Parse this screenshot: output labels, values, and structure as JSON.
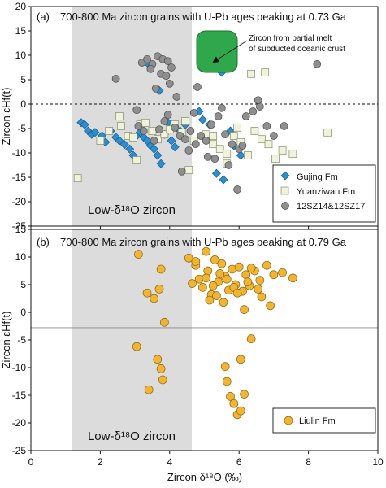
{
  "chart_data": [
    {
      "type": "scatter",
      "panel_label": "(a)",
      "title": "700-800 Ma zircon grains with U-Pb ages peaking at 0.73 Ga",
      "ylabel": "Zircon εHf(t)",
      "xlim": [
        0,
        10
      ],
      "ylim": [
        -25,
        20
      ],
      "xticks": [
        "0",
        "2",
        "4",
        "6",
        "8",
        "10"
      ],
      "yticks": [
        "-25",
        "-20",
        "-15",
        "-10",
        "-5",
        "0",
        "5",
        "10",
        "15",
        "20"
      ],
      "shaded_band": {
        "x_from": 1.15,
        "x_to": 4.6,
        "label": "Low-δ¹⁸O zircon"
      },
      "zero_line_style": "dashed",
      "annotation": {
        "text_line1": "Zircon from partial melt",
        "text_line2": "of subducted oceanic crust",
        "box_color": "#2ea84a",
        "box_x": [
          4.85,
          5.95
        ],
        "box_y": [
          6.5,
          14.5
        ],
        "arrow_to": [
          5.55,
          10.8
        ]
      },
      "legend_position": "bottom-right",
      "series": [
        {
          "name": "Gujing Fm",
          "marker": "diamond",
          "color": "#2b8fcf",
          "edge": "#1a5b8a",
          "x": [
            1.45,
            1.55,
            1.65,
            1.75,
            1.85,
            2.05,
            2.15,
            2.3,
            2.45,
            2.55,
            2.7,
            2.85,
            2.95,
            3.05,
            3.15,
            3.25,
            3.35,
            3.45,
            3.55,
            3.65,
            3.75,
            3.85,
            3.95,
            4.05,
            4.15,
            4.3,
            4.45,
            3.35,
            3.7,
            5.35,
            5.55,
            5.15,
            5.75,
            5.85,
            6.05,
            4.85,
            5.5,
            4.95
          ],
          "y": [
            -3.8,
            -4.2,
            -5.5,
            -6.2,
            -5.8,
            -6.5,
            -7.8,
            -5.5,
            -6.8,
            -7.5,
            -8.3,
            -9.2,
            -10.5,
            -6.5,
            -5.8,
            -6.8,
            -7.5,
            -8.5,
            -9.2,
            -10.5,
            -12.2,
            -6.2,
            -3.8,
            -7.5,
            -8.8,
            -5.5,
            -4.2,
            8.5,
            2.8,
            -14.2,
            -15.5,
            -4.2,
            -5.5,
            -8.5,
            -10.5,
            -1.5,
            6.5,
            -3.2
          ]
        },
        {
          "name": "Yuanziwan Fm",
          "marker": "square",
          "color": "#eef3da",
          "edge": "#8a8a6e",
          "x": [
            1.35,
            2.0,
            2.25,
            2.6,
            2.8,
            2.95,
            3.15,
            3.3,
            3.5,
            3.65,
            3.85,
            4.0,
            4.15,
            4.35,
            4.55,
            4.7,
            5.05,
            5.25,
            5.45,
            5.65,
            5.85,
            6.05,
            6.25,
            6.45,
            6.65,
            6.85,
            7.05,
            7.25,
            7.55,
            6.35,
            6.75,
            5.25,
            5.65,
            8.55,
            2.55,
            3.05,
            4.45,
            5.95
          ],
          "y": [
            -15.2,
            -7.5,
            -5.5,
            -4.5,
            -6.5,
            -6.8,
            -4.2,
            -3.8,
            -5.5,
            -7.2,
            -6.2,
            -5.2,
            -4.2,
            -5.8,
            -13.5,
            -7.5,
            -6.2,
            -8.2,
            -9.2,
            -10.2,
            -6.5,
            -7.8,
            -10.5,
            -5.5,
            -7.2,
            -8.2,
            -11.2,
            -9.5,
            -10.2,
            6.2,
            6.5,
            -6.5,
            -12.2,
            -5.8,
            -2.5,
            -11.5,
            -3.5,
            -4.8
          ]
        },
        {
          "name": "12SZ14&12SZ17",
          "marker": "circle",
          "color": "#8f8f8f",
          "edge": "#4a4a4a",
          "x": [
            3.2,
            3.35,
            3.5,
            3.65,
            3.8,
            3.95,
            4.05,
            3.45,
            3.75,
            3.9,
            4.0,
            3.6,
            2.45,
            3.1,
            3.25,
            3.55,
            3.7,
            3.85,
            4.15,
            4.3,
            4.45,
            4.6,
            4.75,
            4.9,
            5.05,
            5.2,
            5.4,
            5.6,
            5.8,
            6.0,
            6.2,
            6.4,
            6.6,
            6.8,
            7.0,
            7.3,
            8.25,
            4.95,
            4.35,
            4.55,
            5.1,
            5.3,
            5.7,
            5.95,
            6.1,
            3.95,
            4.2,
            4.8,
            5.5,
            6.55,
            3.05,
            4.7
          ],
          "y": [
            8.5,
            9.2,
            8.2,
            9.8,
            9.2,
            8.8,
            7.5,
            7.2,
            6.2,
            5.8,
            4.2,
            3.2,
            5.2,
            -4.5,
            -5.5,
            -7.5,
            -5.2,
            -3.5,
            -4.8,
            -6.5,
            -7.2,
            -5.5,
            -8.2,
            -6.5,
            -7.5,
            -4.2,
            -2.5,
            -6.2,
            -8.2,
            -9.2,
            -2.5,
            -1.5,
            -0.5,
            -4.5,
            -6.5,
            -4.5,
            8.2,
            9.5,
            -13.8,
            -9.5,
            -10.8,
            -11.2,
            -12.5,
            -17.5,
            -8.5,
            -2.2,
            1.5,
            3.5,
            -0.8,
            0.8,
            -1.2,
            -1.8
          ]
        }
      ]
    },
    {
      "type": "scatter",
      "panel_label": "(b)",
      "title": "700-800 Ma zircon grains with U-Pb ages peaking at 0.79 Ga",
      "ylabel": "Zircon εHf(t)",
      "xlabel": "Zircon δ¹⁸O (‰)",
      "xlim": [
        0,
        10
      ],
      "ylim": [
        -25,
        15
      ],
      "xticks": [
        "0",
        "2",
        "4",
        "6",
        "8",
        "10"
      ],
      "yticks": [
        "-25",
        "-20",
        "-15",
        "-10",
        "-5",
        "0",
        "5",
        "10",
        "15"
      ],
      "shaded_band": {
        "x_from": 1.15,
        "x_to": 4.6,
        "label": "Low-δ¹⁸O zircon"
      },
      "zero_line_style": "solid",
      "legend_position": "bottom-right",
      "series": [
        {
          "name": "Liulin Fm",
          "marker": "circle",
          "color": "#f2b533",
          "edge": "#8a6410",
          "x": [
            3.1,
            3.75,
            3.7,
            3.55,
            3.85,
            3.05,
            3.4,
            3.8,
            3.75,
            3.65,
            3.35,
            4.55,
            4.65,
            4.75,
            4.85,
            4.95,
            5.05,
            5.1,
            5.2,
            5.3,
            5.4,
            5.5,
            5.6,
            5.7,
            5.8,
            5.9,
            6.0,
            6.1,
            6.2,
            6.3,
            6.45,
            6.6,
            6.8,
            7.0,
            7.25,
            7.55,
            5.05,
            5.45,
            5.85,
            6.25,
            6.65,
            5.25,
            5.35,
            5.65,
            5.95,
            6.35,
            6.55,
            4.75,
            5.15,
            5.55,
            6.15,
            6.9,
            6.35,
            6.05,
            5.6,
            5.65,
            5.75,
            5.85,
            5.95,
            6.05,
            6.15
          ],
          "y": [
            10.5,
            7.8,
            4.2,
            2.5,
            -1.8,
            -6.2,
            -14.0,
            -12.2,
            -10.2,
            -8.5,
            3.5,
            9.8,
            5.2,
            8.5,
            6.0,
            4.5,
            11.0,
            7.5,
            3.2,
            9.5,
            5.5,
            8.8,
            6.5,
            4.0,
            7.8,
            5.0,
            8.2,
            3.8,
            6.8,
            4.8,
            7.5,
            5.8,
            8.5,
            6.8,
            7.2,
            6.2,
            6.2,
            7.0,
            4.5,
            5.5,
            2.8,
            4.8,
            3.0,
            6.0,
            3.5,
            8.0,
            4.2,
            9.2,
            2.2,
            1.8,
            0.5,
            1.2,
            -4.8,
            -8.5,
            -9.8,
            -12.5,
            -15.2,
            -16.5,
            -18.5,
            -17.8,
            -14.8
          ]
        }
      ]
    }
  ]
}
